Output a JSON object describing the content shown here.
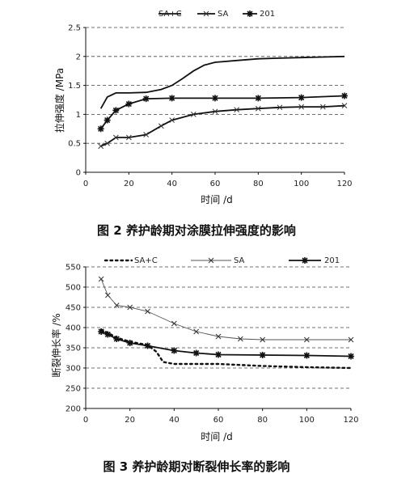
{
  "chart_data": [
    {
      "type": "line",
      "caption": "图 2  养护龄期对涂膜拉伸强度的影响",
      "xlabel": "时间 /d",
      "ylabel": "拉伸强度 /MPa",
      "xlim": [
        0,
        120
      ],
      "ylim": [
        0,
        2.5
      ],
      "xticks": [
        "0",
        "20",
        "40",
        "60",
        "80",
        "100",
        "120"
      ],
      "yticks": [
        "0",
        "0.5",
        "1",
        "1.5",
        "2",
        "2.5"
      ],
      "grid": "horizontal dashed",
      "legend_position": "top",
      "series": [
        {
          "name": "SA+C",
          "style": "solid",
          "marker": "none",
          "x": [
            7,
            10,
            14,
            20,
            28,
            35,
            40,
            45,
            50,
            55,
            60,
            70,
            80,
            90,
            100,
            110,
            120
          ],
          "y": [
            1.1,
            1.3,
            1.37,
            1.37,
            1.38,
            1.43,
            1.5,
            1.62,
            1.75,
            1.85,
            1.9,
            1.93,
            1.96,
            1.97,
            1.98,
            1.99,
            2.0
          ]
        },
        {
          "name": "SA",
          "style": "solid",
          "marker": "x",
          "x": [
            7,
            10,
            14,
            20,
            28,
            35,
            40,
            50,
            60,
            70,
            80,
            90,
            100,
            110,
            120
          ],
          "y": [
            0.45,
            0.5,
            0.6,
            0.6,
            0.65,
            0.8,
            0.9,
            1.0,
            1.05,
            1.08,
            1.1,
            1.12,
            1.13,
            1.13,
            1.15
          ]
        },
        {
          "name": "201",
          "style": "solid",
          "marker": "star",
          "x": [
            7,
            10,
            14,
            20,
            28,
            40,
            60,
            80,
            100,
            120
          ],
          "y": [
            0.75,
            0.9,
            1.07,
            1.18,
            1.27,
            1.28,
            1.28,
            1.28,
            1.29,
            1.32
          ]
        }
      ]
    },
    {
      "type": "line",
      "caption": "图 3  养护龄期对断裂伸长率的影响",
      "xlabel": "时间 /d",
      "ylabel": "断裂伸长率 /%",
      "xlim": [
        0,
        120
      ],
      "ylim": [
        200,
        550
      ],
      "xticks": [
        "0",
        "20",
        "40",
        "60",
        "80",
        "100",
        "120"
      ],
      "yticks": [
        "200",
        "250",
        "300",
        "350",
        "400",
        "450",
        "500",
        "550"
      ],
      "grid": "horizontal dashed",
      "legend_position": "top",
      "series": [
        {
          "name": "SA+C",
          "style": "dotted",
          "marker": "none",
          "x": [
            7,
            10,
            14,
            20,
            28,
            32,
            35,
            40,
            60,
            80,
            100,
            120
          ],
          "y": [
            395,
            387,
            375,
            365,
            357,
            340,
            315,
            310,
            310,
            305,
            302,
            300
          ]
        },
        {
          "name": "SA",
          "style": "thin",
          "marker": "x",
          "x": [
            7,
            10,
            14,
            20,
            28,
            40,
            50,
            60,
            70,
            80,
            100,
            120
          ],
          "y": [
            520,
            480,
            455,
            450,
            440,
            410,
            390,
            378,
            372,
            370,
            370,
            370
          ]
        },
        {
          "name": "201",
          "style": "solid",
          "marker": "star",
          "x": [
            7,
            10,
            14,
            20,
            28,
            40,
            50,
            60,
            80,
            100,
            120
          ],
          "y": [
            390,
            383,
            372,
            362,
            355,
            343,
            337,
            333,
            332,
            331,
            329
          ]
        }
      ]
    }
  ]
}
